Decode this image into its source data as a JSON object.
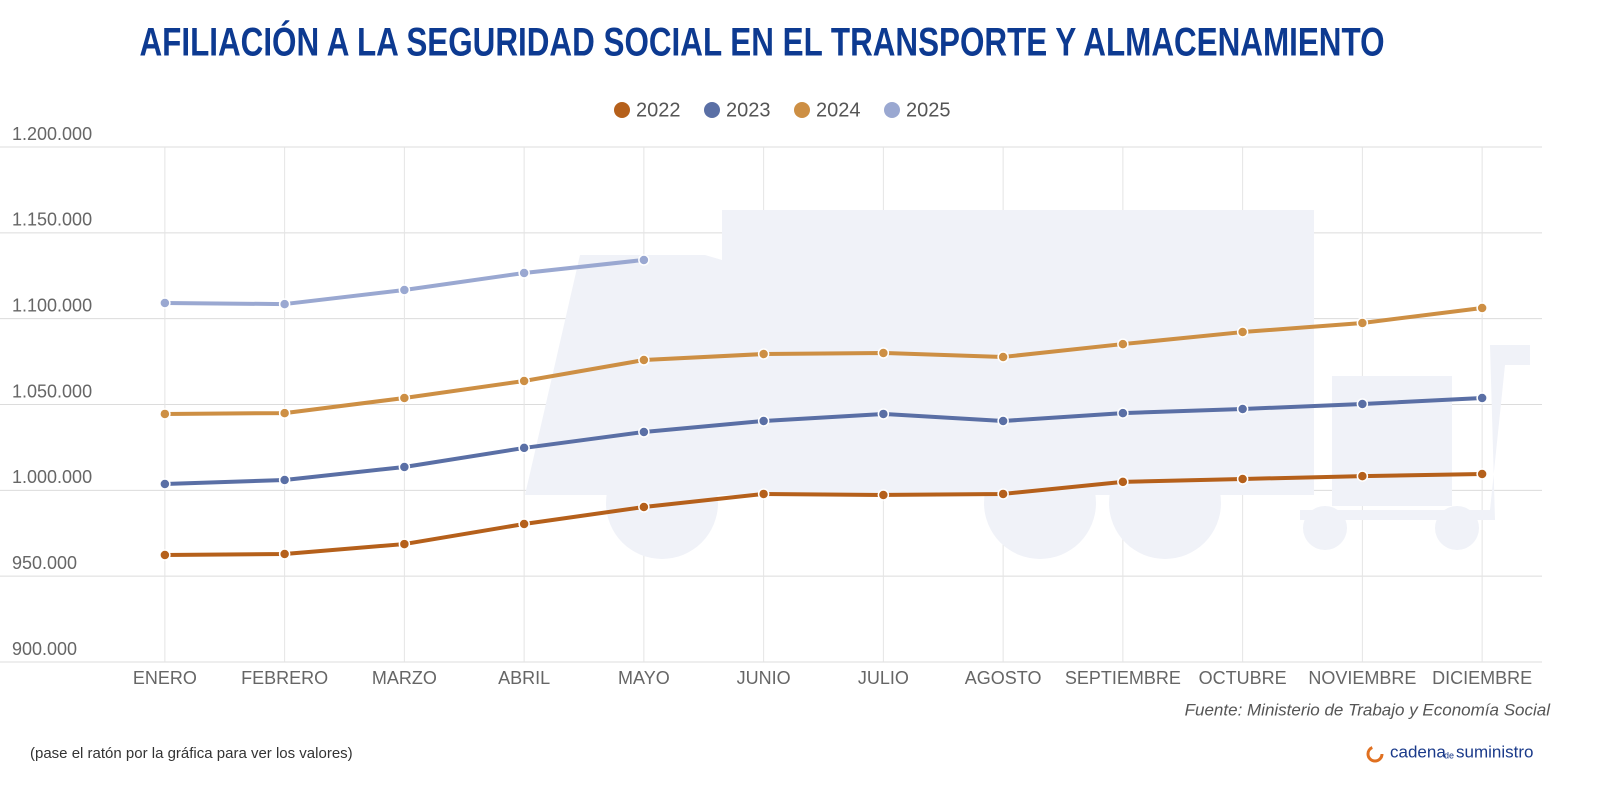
{
  "chart_data": {
    "type": "line",
    "title": "AFILIACIÓN A LA SEGURIDAD SOCIAL EN EL TRANSPORTE Y ALMACENAMIENTO",
    "categories": [
      "ENERO",
      "FEBRERO",
      "MARZO",
      "ABRIL",
      "MAYO",
      "JUNIO",
      "JULIO",
      "AGOSTO",
      "SEPTIEMBRE",
      "OCTUBRE",
      "NOVIEMBRE",
      "DICIEMBRE"
    ],
    "series": [
      {
        "name": "2022",
        "color": "#b5601b",
        "values": [
          962300,
          962900,
          968700,
          980400,
          990300,
          997900,
          997300,
          997900,
          1004900,
          1006600,
          1008300,
          1009500
        ]
      },
      {
        "name": "2023",
        "color": "#5a6fa5",
        "values": [
          1003700,
          1006000,
          1013600,
          1024700,
          1034000,
          1040400,
          1044500,
          1040400,
          1045000,
          1047400,
          1050300,
          1053800
        ]
      },
      {
        "name": "2024",
        "color": "#cd8f44",
        "values": [
          1044500,
          1045000,
          1053800,
          1063700,
          1075900,
          1079400,
          1080000,
          1077700,
          1085200,
          1092200,
          1097500,
          1106200
        ]
      },
      {
        "name": "2025",
        "color": "#9aa8d1",
        "values": [
          1109100,
          1108500,
          1116700,
          1126600,
          1134200,
          null,
          null,
          null,
          null,
          null,
          null,
          null
        ]
      }
    ],
    "ylim": [
      900000,
      1200000
    ],
    "yticks": [
      {
        "value": 900000,
        "label": "900.000"
      },
      {
        "value": 950000,
        "label": "950.000"
      },
      {
        "value": 1000000,
        "label": "1.000.000"
      },
      {
        "value": 1050000,
        "label": "1.050.000"
      },
      {
        "value": 1100000,
        "label": "1.100.000"
      },
      {
        "value": 1150000,
        "label": "1.150.000"
      },
      {
        "value": 1200000,
        "label": "1.200.000"
      }
    ],
    "grid": true,
    "legend": "top",
    "source": "Fuente: Ministerio de Trabajo y Economía Social",
    "note": "(pase el ratón por la gráfica para ver los valores)",
    "brand": [
      "cadena",
      "de",
      "suministro"
    ]
  }
}
